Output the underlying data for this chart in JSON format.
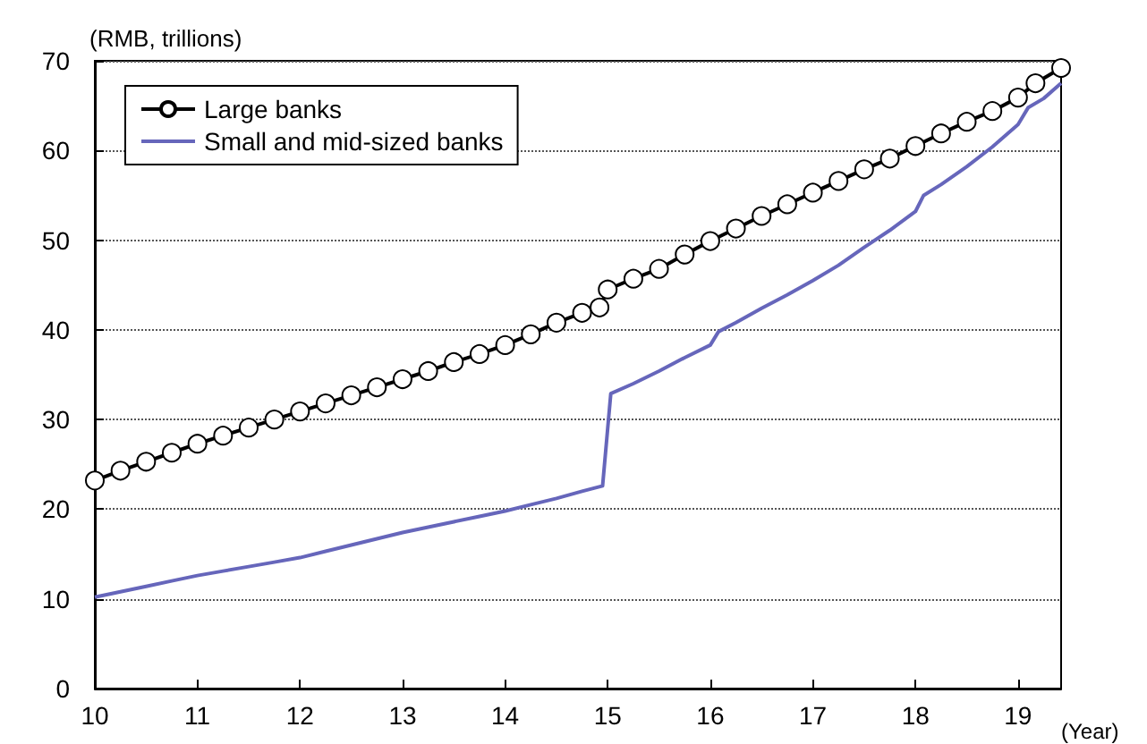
{
  "chart_data": {
    "type": "line",
    "ylabel": "(RMB, trillions)",
    "xlabel": "(Year)",
    "xlim": [
      10,
      19.42
    ],
    "xticks": [
      10,
      11,
      12,
      13,
      14,
      15,
      16,
      17,
      18,
      19
    ],
    "ylim": [
      0,
      70
    ],
    "yticks": [
      0,
      10,
      20,
      30,
      40,
      50,
      60,
      70
    ],
    "grid": "y",
    "legend": "top left",
    "series": [
      {
        "name": "Large banks",
        "color": "#000000",
        "marker": "circle",
        "x": [
          10,
          10.25,
          10.5,
          10.75,
          11,
          11.25,
          11.5,
          11.75,
          12,
          12.25,
          12.5,
          12.75,
          13,
          13.25,
          13.5,
          13.75,
          14,
          14.25,
          14.5,
          14.75,
          14.92,
          15,
          15.25,
          15.5,
          15.75,
          16,
          16.25,
          16.5,
          16.75,
          17,
          17.25,
          17.5,
          17.75,
          18,
          18.25,
          18.5,
          18.75,
          19,
          19.17,
          19.42
        ],
        "values": [
          23.2,
          24.3,
          25.3,
          26.3,
          27.3,
          28.2,
          29.1,
          30,
          30.9,
          31.8,
          32.7,
          33.6,
          34.5,
          35.4,
          36.4,
          37.3,
          38.3,
          39.5,
          40.8,
          41.9,
          42.5,
          44.5,
          45.7,
          46.8,
          48.4,
          49.9,
          51.3,
          52.7,
          54,
          55.3,
          56.6,
          57.9,
          59.1,
          60.5,
          61.9,
          63.2,
          64.4,
          65.9,
          67.5,
          69.2
        ]
      },
      {
        "name": "Small and mid-sized banks",
        "color": "#6666bb",
        "marker": "none",
        "x": [
          10,
          10.25,
          10.5,
          10.75,
          11,
          11.25,
          11.5,
          11.75,
          12,
          12.25,
          12.5,
          12.75,
          13,
          13.25,
          13.5,
          13.75,
          14,
          14.25,
          14.5,
          14.75,
          14.95,
          15.03,
          15.25,
          15.5,
          15.75,
          16,
          16.08,
          16.25,
          16.5,
          16.75,
          17,
          17.25,
          17.5,
          17.75,
          18,
          18.08,
          18.25,
          18.5,
          18.75,
          19,
          19.1,
          19.25,
          19.42
        ],
        "values": [
          10.2,
          10.8,
          11.4,
          12,
          12.6,
          13.1,
          13.6,
          14.1,
          14.6,
          15.3,
          16,
          16.7,
          17.4,
          18,
          18.6,
          19.2,
          19.8,
          20.5,
          21.2,
          22,
          22.6,
          32.9,
          34,
          35.4,
          36.9,
          38.3,
          39.8,
          40.8,
          42.4,
          43.9,
          45.5,
          47.2,
          49.2,
          51.1,
          53.2,
          55,
          56.2,
          58.2,
          60.4,
          62.9,
          64.8,
          65.8,
          67.5
        ]
      }
    ]
  }
}
